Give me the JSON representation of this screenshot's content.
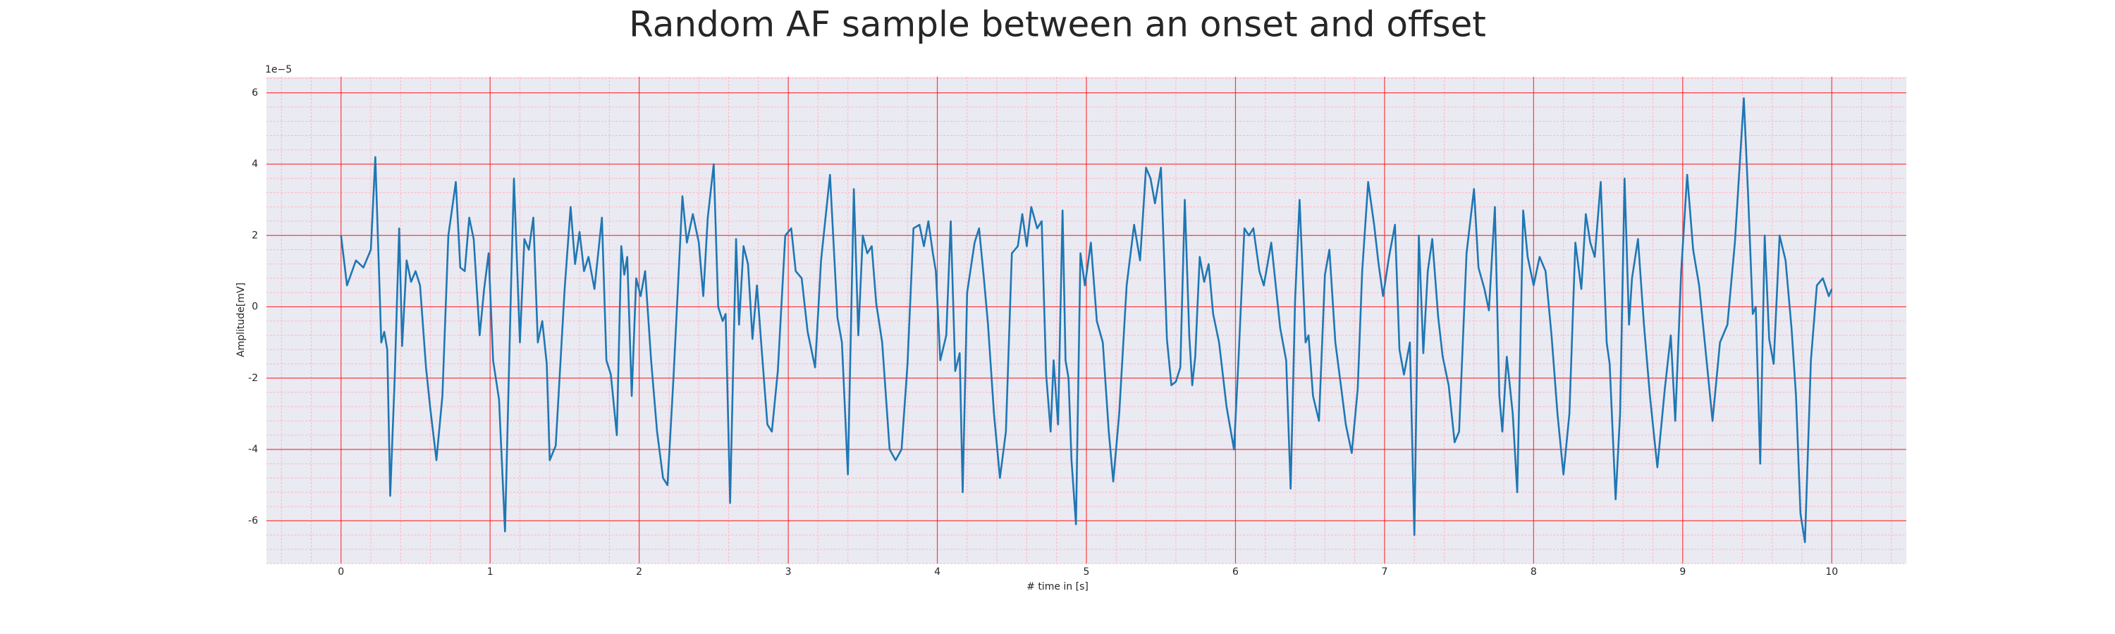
{
  "chart_data": {
    "type": "line",
    "title": "Random AF sample between an onset and offset",
    "xlabel": "# time in [s]",
    "ylabel": "Amplitude[mV]",
    "y_offset_text": "1e−5",
    "color": "#1f77b4",
    "background": "#eaeaf2",
    "grid": true,
    "grid_color": "#ff0000",
    "minor_grid_color": "#ffb6c1",
    "xlim": [
      -0.5,
      10.5
    ],
    "ylim": [
      -7.2,
      6.45
    ],
    "xticks": [
      0,
      1,
      2,
      3,
      4,
      5,
      6,
      7,
      8,
      9,
      10
    ],
    "yticks": [
      -6,
      -4,
      -2,
      0,
      2,
      4,
      6
    ],
    "xminorticks": [
      -0.4,
      -0.2,
      0,
      0.2,
      0.4,
      0.6,
      0.8,
      1,
      1.2,
      1.4,
      1.6,
      1.8,
      2,
      2.2,
      2.4,
      2.6,
      2.8,
      3,
      3.2,
      3.4,
      3.6,
      3.8,
      4,
      4.2,
      4.4,
      4.6,
      4.8,
      5,
      5.2,
      5.4,
      5.6,
      5.8,
      6,
      6.2,
      6.4,
      6.6,
      6.8,
      7,
      7.2,
      7.4,
      7.6,
      7.8,
      8,
      8.2,
      8.4,
      8.6,
      8.8,
      9,
      9.2,
      9.4,
      9.6,
      9.8,
      10,
      10.2,
      10.4
    ],
    "yminorticks": [
      -7.2,
      -6.8,
      -6.4,
      -6,
      -5.6,
      -5.2,
      -4.8,
      -4.4,
      -4,
      -3.6,
      -3.2,
      -2.8,
      -2.4,
      -2,
      -1.6,
      -1.2,
      -0.8,
      -0.4,
      0,
      0.4,
      0.8,
      1.2,
      1.6,
      2,
      2.4,
      2.8,
      3.2,
      3.6,
      4,
      4.4,
      4.8,
      5.2,
      5.6,
      6,
      6.4
    ],
    "x": [
      0.0,
      0.04,
      0.1,
      0.15,
      0.2,
      0.23,
      0.27,
      0.29,
      0.31,
      0.33,
      0.36,
      0.39,
      0.41,
      0.44,
      0.47,
      0.5,
      0.53,
      0.57,
      0.6,
      0.64,
      0.68,
      0.72,
      0.77,
      0.8,
      0.83,
      0.86,
      0.89,
      0.93,
      0.96,
      0.99,
      1.02,
      1.06,
      1.1,
      1.14,
      1.16,
      1.2,
      1.23,
      1.26,
      1.29,
      1.32,
      1.35,
      1.38,
      1.4,
      1.44,
      1.5,
      1.54,
      1.57,
      1.6,
      1.63,
      1.66,
      1.7,
      1.75,
      1.78,
      1.81,
      1.85,
      1.88,
      1.9,
      1.92,
      1.95,
      1.98,
      2.01,
      2.04,
      2.08,
      2.12,
      2.16,
      2.19,
      2.23,
      2.29,
      2.32,
      2.36,
      2.4,
      2.43,
      2.46,
      2.5,
      2.53,
      2.56,
      2.58,
      2.61,
      2.65,
      2.67,
      2.7,
      2.73,
      2.76,
      2.79,
      2.82,
      2.86,
      2.89,
      2.93,
      2.98,
      3.02,
      3.05,
      3.09,
      3.13,
      3.18,
      3.22,
      3.28,
      3.33,
      3.36,
      3.4,
      3.44,
      3.47,
      3.5,
      3.53,
      3.56,
      3.59,
      3.63,
      3.68,
      3.72,
      3.76,
      3.8,
      3.84,
      3.88,
      3.91,
      3.94,
      3.97,
      3.99,
      4.02,
      4.06,
      4.09,
      4.12,
      4.15,
      4.17,
      4.2,
      4.25,
      4.28,
      4.31,
      4.34,
      4.38,
      4.42,
      4.46,
      4.5,
      4.54,
      4.57,
      4.6,
      4.63,
      4.67,
      4.7,
      4.73,
      4.76,
      4.78,
      4.81,
      4.84,
      4.86,
      4.88,
      4.9,
      4.93,
      4.96,
      4.99,
      5.03,
      5.07,
      5.11,
      5.15,
      5.18,
      5.22,
      5.27,
      5.32,
      5.36,
      5.4,
      5.43,
      5.46,
      5.5,
      5.54,
      5.57,
      5.6,
      5.63,
      5.66,
      5.69,
      5.71,
      5.73,
      5.76,
      5.79,
      5.82,
      5.85,
      5.89,
      5.94,
      5.99,
      6.02,
      6.06,
      6.09,
      6.12,
      6.16,
      6.19,
      6.24,
      6.27,
      6.3,
      6.34,
      6.37,
      6.4,
      6.43,
      6.47,
      6.49,
      6.52,
      6.56,
      6.6,
      6.63,
      6.67,
      6.71,
      6.74,
      6.78,
      6.82,
      6.85,
      6.89,
      6.93,
      6.96,
      6.99,
      7.03,
      7.07,
      7.1,
      7.13,
      7.17,
      7.2,
      7.23,
      7.26,
      7.29,
      7.32,
      7.36,
      7.39,
      7.43,
      7.47,
      7.5,
      7.55,
      7.6,
      7.63,
      7.67,
      7.7,
      7.74,
      7.77,
      7.79,
      7.82,
      7.86,
      7.89,
      7.93,
      7.96,
      8.0,
      8.04,
      8.08,
      8.12,
      8.16,
      8.2,
      8.24,
      8.28,
      8.32,
      8.35,
      8.38,
      8.41,
      8.45,
      8.49,
      8.51,
      8.55,
      8.58,
      8.61,
      8.64,
      8.66,
      8.7,
      8.74,
      8.78,
      8.83,
      8.88,
      8.92,
      8.95,
      8.99,
      9.03,
      9.07,
      9.11,
      9.16,
      9.2,
      9.25,
      9.3,
      9.35,
      9.41,
      9.44,
      9.47,
      9.49,
      9.52,
      9.55,
      9.58,
      9.61,
      9.65,
      9.69,
      9.73,
      9.76,
      9.79,
      9.82,
      9.86,
      9.9,
      9.94,
      9.98,
      10.0
    ],
    "values": [
      2.0,
      0.6,
      1.3,
      1.1,
      1.6,
      4.2,
      -1.0,
      -0.7,
      -1.2,
      -5.3,
      -2.0,
      2.2,
      -1.1,
      1.3,
      0.7,
      1.0,
      0.6,
      -1.7,
      -2.9,
      -4.3,
      -2.5,
      2.0,
      3.5,
      1.1,
      1.0,
      2.5,
      1.9,
      -0.8,
      0.5,
      1.5,
      -1.5,
      -2.6,
      -6.3,
      0.5,
      3.6,
      -1.0,
      1.9,
      1.6,
      2.5,
      -1.0,
      -0.4,
      -1.6,
      -4.3,
      -3.9,
      0.5,
      2.8,
      1.2,
      2.1,
      1.0,
      1.4,
      0.5,
      2.5,
      -1.5,
      -1.9,
      -3.6,
      1.7,
      0.9,
      1.4,
      -2.5,
      0.8,
      0.3,
      1.0,
      -1.5,
      -3.5,
      -4.8,
      -5.0,
      -2.0,
      3.1,
      1.8,
      2.6,
      1.8,
      0.3,
      2.5,
      4.0,
      0.0,
      -0.4,
      -0.2,
      -5.5,
      1.9,
      -0.5,
      1.7,
      1.2,
      -0.9,
      0.6,
      -1.1,
      -3.3,
      -3.5,
      -1.8,
      2.0,
      2.2,
      1.0,
      0.8,
      -0.7,
      -1.7,
      1.3,
      3.7,
      -0.3,
      -1.0,
      -4.7,
      3.3,
      -0.8,
      2.0,
      1.5,
      1.7,
      0.1,
      -1.0,
      -4.0,
      -4.3,
      -4.0,
      -1.6,
      2.2,
      2.3,
      1.7,
      2.4,
      1.5,
      1.0,
      -1.5,
      -0.8,
      2.4,
      -1.8,
      -1.3,
      -5.2,
      0.4,
      1.8,
      2.2,
      0.9,
      -0.5,
      -3.0,
      -4.8,
      -3.5,
      1.5,
      1.7,
      2.6,
      1.7,
      2.8,
      2.2,
      2.4,
      -1.9,
      -3.5,
      -1.5,
      -3.3,
      2.7,
      -1.5,
      -2.0,
      -4.3,
      -6.1,
      1.5,
      0.6,
      1.8,
      -0.4,
      -1.0,
      -3.5,
      -4.9,
      -3.0,
      0.6,
      2.3,
      1.3,
      3.9,
      3.6,
      2.9,
      3.9,
      -0.9,
      -2.2,
      -2.1,
      -1.7,
      3.0,
      -0.8,
      -2.2,
      -1.4,
      1.4,
      0.7,
      1.2,
      -0.2,
      -1.0,
      -2.8,
      -4.0,
      -1.5,
      2.2,
      2.0,
      2.2,
      1.0,
      0.6,
      1.8,
      0.6,
      -0.6,
      -1.5,
      -5.1,
      0.2,
      3.0,
      -1.0,
      -0.8,
      -2.5,
      -3.2,
      0.9,
      1.6,
      -1.0,
      -2.3,
      -3.3,
      -4.1,
      -2.3,
      1.0,
      3.5,
      2.3,
      1.2,
      0.3,
      1.4,
      2.3,
      -1.2,
      -1.9,
      -1.0,
      -6.4,
      2.0,
      -1.3,
      1.0,
      1.9,
      -0.3,
      -1.4,
      -2.2,
      -3.8,
      -3.5,
      1.5,
      3.3,
      1.1,
      0.5,
      -0.1,
      2.8,
      -2.5,
      -3.5,
      -1.4,
      -3.0,
      -5.2,
      2.7,
      1.4,
      0.6,
      1.4,
      1.0,
      -0.8,
      -3.0,
      -4.7,
      -3.0,
      1.8,
      0.5,
      2.6,
      1.8,
      1.4,
      3.5,
      -1.0,
      -1.6,
      -5.4,
      -3.0,
      3.6,
      -0.5,
      0.8,
      1.9,
      -0.5,
      -2.5,
      -4.5,
      -2.3,
      -0.8,
      -3.2,
      1.0,
      3.7,
      1.6,
      0.6,
      -1.5,
      -3.2,
      -1.0,
      -0.5,
      1.8,
      5.85,
      3.0,
      -0.2,
      0.0,
      -4.4,
      2.0,
      -0.9,
      -1.6,
      2.0,
      1.3,
      -0.6,
      -2.5,
      -5.8,
      -6.6,
      -1.5,
      0.6,
      0.8,
      0.3,
      0.5
    ]
  }
}
